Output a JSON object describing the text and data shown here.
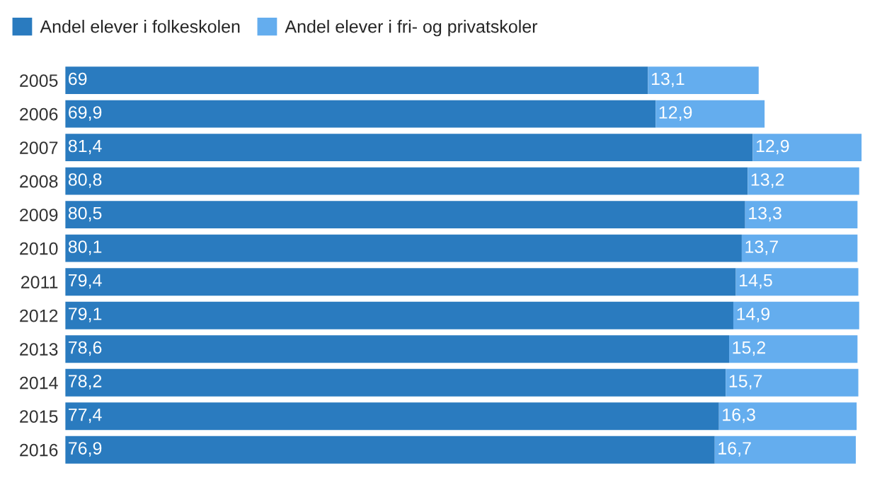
{
  "chart_data": {
    "type": "bar",
    "orientation": "horizontal",
    "stacked": true,
    "legend": "top left",
    "grid": false,
    "categories": [
      "2005",
      "2006",
      "2007",
      "2008",
      "2009",
      "2010",
      "2011",
      "2012",
      "2013",
      "2014",
      "2015",
      "2016"
    ],
    "series": [
      {
        "name": "Andel elever i folkeskolen",
        "color": "#2a7bbf",
        "values": [
          69,
          69.9,
          81.4,
          80.8,
          80.5,
          80.1,
          79.4,
          79.1,
          78.6,
          78.2,
          77.4,
          76.9
        ],
        "value_labels": [
          "69",
          "69,9",
          "81,4",
          "80,8",
          "80,5",
          "80,1",
          "79,4",
          "79,1",
          "78,6",
          "78,2",
          "77,4",
          "76,9"
        ]
      },
      {
        "name": "Andel elever i fri- og privatskoler",
        "color": "#64adee",
        "values": [
          13.1,
          12.9,
          12.9,
          13.2,
          13.3,
          13.7,
          14.5,
          14.9,
          15.2,
          15.7,
          16.3,
          16.7
        ],
        "value_labels": [
          "13,1",
          "12,9",
          "12,9",
          "13,2",
          "13,3",
          "13,7",
          "14,5",
          "14,9",
          "15,2",
          "15,7",
          "16,3",
          "16,7"
        ]
      }
    ]
  }
}
